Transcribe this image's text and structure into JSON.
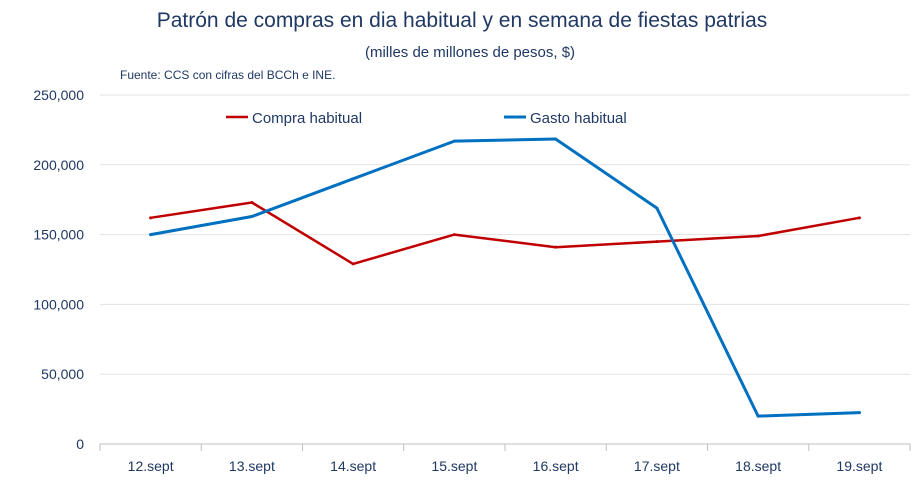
{
  "chart_data": {
    "type": "line",
    "title": "Patrón de compras en dia habitual y en semana de fiestas patrias",
    "subtitle": "(milles de millones de pesos, $)",
    "source": "Fuente: CCS con cifras del BCCh e INE.",
    "categories": [
      "12.sept",
      "13.sept",
      "14.sept",
      "15.sept",
      "16.sept",
      "17.sept",
      "18.sept",
      "19.sept"
    ],
    "ylim": [
      0,
      250000
    ],
    "yticks": [
      0,
      50000,
      100000,
      150000,
      200000,
      250000
    ],
    "ytick_labels": [
      "0",
      "50,000",
      "100,000",
      "150,000",
      "200,000",
      "250,000"
    ],
    "grid": true,
    "legend_position": "top",
    "series": [
      {
        "name": "Compra habitual",
        "color": "#c00000",
        "values": [
          162000,
          173000,
          129000,
          150000,
          141000,
          145000,
          149000,
          162000
        ]
      },
      {
        "name": "Gasto habitual",
        "color": "#0070c0",
        "values": [
          150000,
          163000,
          190000,
          217000,
          218500,
          169000,
          20000,
          22500
        ]
      }
    ]
  }
}
